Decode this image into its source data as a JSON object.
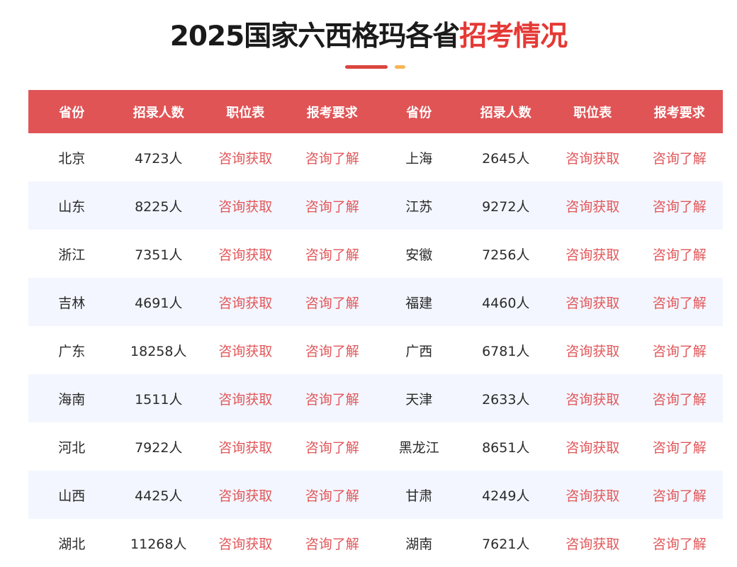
{
  "title": {
    "main": "2025国家六西格玛各省",
    "highlight": "招考情况"
  },
  "colors": {
    "header_bg": "#e05456",
    "link": "#e2575a",
    "title_highlight": "#e53935",
    "alt_row": "#f3f6fe"
  },
  "table": {
    "headers": [
      "省份",
      "招录人数",
      "职位表",
      "报考要求",
      "省份",
      "招录人数",
      "职位表",
      "报考要求"
    ],
    "rows": [
      [
        "北京",
        "4723人",
        "咨询获取",
        "咨询了解",
        "上海",
        "2645人",
        "咨询获取",
        "咨询了解"
      ],
      [
        "山东",
        "8225人",
        "咨询获取",
        "咨询了解",
        "江苏",
        "9272人",
        "咨询获取",
        "咨询了解"
      ],
      [
        "浙江",
        "7351人",
        "咨询获取",
        "咨询了解",
        "安徽",
        "7256人",
        "咨询获取",
        "咨询了解"
      ],
      [
        "吉林",
        "4691人",
        "咨询获取",
        "咨询了解",
        "福建",
        "4460人",
        "咨询获取",
        "咨询了解"
      ],
      [
        "广东",
        "18258人",
        "咨询获取",
        "咨询了解",
        "广西",
        "6781人",
        "咨询获取",
        "咨询了解"
      ],
      [
        "海南",
        "1511人",
        "咨询获取",
        "咨询了解",
        "天津",
        "2633人",
        "咨询获取",
        "咨询了解"
      ],
      [
        "河北",
        "7922人",
        "咨询获取",
        "咨询了解",
        "黑龙江",
        "8651人",
        "咨询获取",
        "咨询了解"
      ],
      [
        "山西",
        "4425人",
        "咨询获取",
        "咨询了解",
        "甘肃",
        "4249人",
        "咨询获取",
        "咨询了解"
      ],
      [
        "湖北",
        "11268人",
        "咨询获取",
        "咨询了解",
        "湖南",
        "7621人",
        "咨询获取",
        "咨询了解"
      ]
    ]
  }
}
